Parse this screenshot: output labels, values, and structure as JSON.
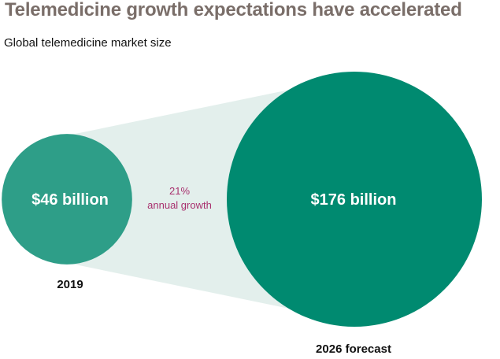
{
  "title": "Telemedicine growth expectations have accelerated",
  "subtitle": "Global telemedicine market size",
  "chart_data": {
    "type": "bubble",
    "title": "Telemedicine growth expectations have accelerated",
    "subtitle": "Global telemedicine market size",
    "series": [
      {
        "category": "2019",
        "value": 46,
        "unit": "billion USD",
        "label": "$46 billion",
        "color": "#2e9e88"
      },
      {
        "category": "2026 forecast",
        "value": 176,
        "unit": "billion USD",
        "label": "$176 billion",
        "color": "#008a70"
      }
    ],
    "annotation": {
      "rate": "21%",
      "text": "annual growth",
      "color": "#a8306e"
    },
    "connector_color": "#e3efec"
  }
}
